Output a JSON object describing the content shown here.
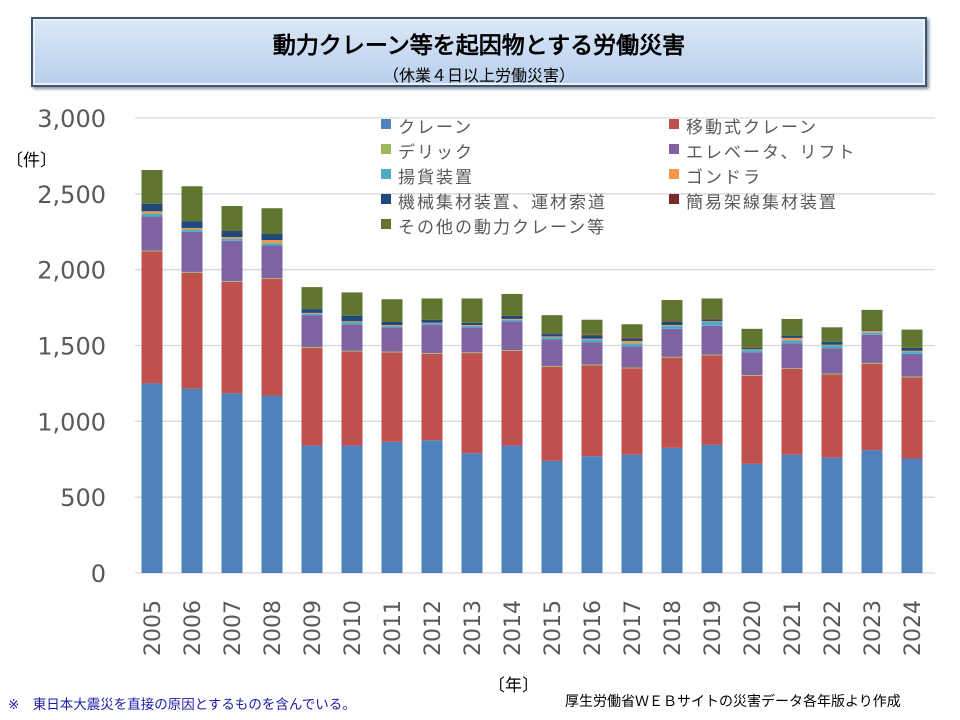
{
  "title": {
    "main": "動力クレーン等を起因物とする労働災害",
    "sub": "（休業４日以上労働災害）"
  },
  "axis_units": {
    "y": "〔件〕",
    "x": "〔年〕"
  },
  "footnote": "※　東日本大震災を直接の原因とするものを含んでいる。",
  "source": "厚生労働省ＷＥＢサイトの災害データ各年版より作成",
  "chart_data": {
    "type": "bar",
    "stacked": true,
    "title": "動力クレーン等を起因物とする労働災害",
    "subtitle": "（休業４日以上労働災害）",
    "xlabel": "〔年〕",
    "ylabel": "〔件〕",
    "ylim": [
      0,
      3000
    ],
    "yticks": [
      0,
      500,
      1000,
      1500,
      2000,
      2500,
      3000
    ],
    "ytick_labels": [
      "0",
      "500",
      "1,000",
      "1,500",
      "2,000",
      "2,500",
      "3,000"
    ],
    "grid": true,
    "legend_position": "top-right",
    "categories": [
      "2005",
      "2006",
      "2007",
      "2008",
      "2009",
      "2010",
      "2011",
      "2012",
      "2013",
      "2014",
      "2015",
      "2016",
      "2017",
      "2018",
      "2019",
      "2020",
      "2021",
      "2022",
      "2023",
      "2024"
    ],
    "series": [
      {
        "name": "クレーン",
        "color": "#4f81bd",
        "values": [
          1250,
          1215,
          1185,
          1170,
          840,
          840,
          865,
          875,
          790,
          840,
          740,
          770,
          780,
          825,
          845,
          720,
          780,
          760,
          810,
          755
        ]
      },
      {
        "name": "移動式クレーン",
        "color": "#c0504d",
        "values": [
          870,
          765,
          735,
          770,
          645,
          620,
          590,
          570,
          660,
          625,
          620,
          600,
          570,
          595,
          590,
          580,
          565,
          550,
          570,
          535
        ]
      },
      {
        "name": "デリック",
        "color": "#9bbb59",
        "values": [
          5,
          5,
          5,
          5,
          5,
          5,
          5,
          5,
          5,
          5,
          5,
          5,
          5,
          5,
          5,
          5,
          5,
          5,
          5,
          5
        ]
      },
      {
        "name": "エレベータ、リフト",
        "color": "#8064a2",
        "values": [
          225,
          265,
          265,
          215,
          210,
          175,
          160,
          185,
          165,
          190,
          175,
          145,
          140,
          185,
          190,
          150,
          165,
          165,
          185,
          150
        ]
      },
      {
        "name": "揚貨装置",
        "color": "#4bacc6",
        "values": [
          20,
          15,
          15,
          15,
          10,
          15,
          10,
          10,
          10,
          10,
          15,
          20,
          20,
          20,
          25,
          15,
          20,
          20,
          15,
          15
        ]
      },
      {
        "name": "ゴンドラ",
        "color": "#f79646",
        "values": [
          15,
          10,
          10,
          20,
          5,
          5,
          5,
          5,
          5,
          5,
          5,
          5,
          15,
          5,
          5,
          5,
          15,
          5,
          10,
          5
        ]
      },
      {
        "name": "機械集材装置、運材索道",
        "color": "#1f497d",
        "values": [
          50,
          45,
          40,
          40,
          25,
          35,
          20,
          20,
          15,
          20,
          15,
          20,
          15,
          20,
          10,
          10,
          15,
          20,
          5,
          20
        ]
      },
      {
        "name": "簡易架線集材装置",
        "color": "#772c2a",
        "values": [
          0,
          0,
          0,
          0,
          0,
          0,
          0,
          0,
          0,
          0,
          5,
          5,
          5,
          5,
          5,
          0,
          0,
          0,
          0,
          0
        ]
      },
      {
        "name": "その他の動力クレーン等",
        "color": "#5f7530",
        "values": [
          222,
          230,
          165,
          170,
          145,
          155,
          150,
          140,
          160,
          145,
          120,
          100,
          90,
          140,
          135,
          125,
          110,
          95,
          135,
          120
        ]
      }
    ]
  }
}
